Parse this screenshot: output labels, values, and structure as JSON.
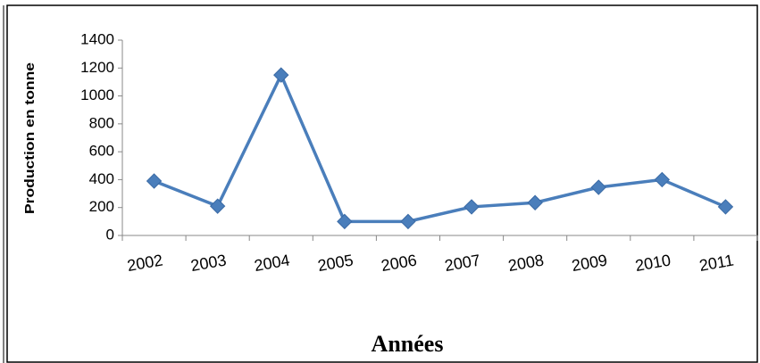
{
  "chart_data": {
    "type": "line",
    "x_label": "Années",
    "y_label": "Production en tonne",
    "categories": [
      "2002",
      "2003",
      "2004",
      "2005",
      "2006",
      "2007",
      "2008",
      "2009",
      "2010",
      "2011"
    ],
    "values": [
      390,
      210,
      1150,
      100,
      100,
      205,
      235,
      345,
      400,
      205
    ],
    "color": "#4a7ebb",
    "ylim": [
      0,
      1400
    ],
    "yticks": [
      0,
      200,
      400,
      600,
      800,
      1000,
      1200,
      1400
    ],
    "grid": false
  }
}
